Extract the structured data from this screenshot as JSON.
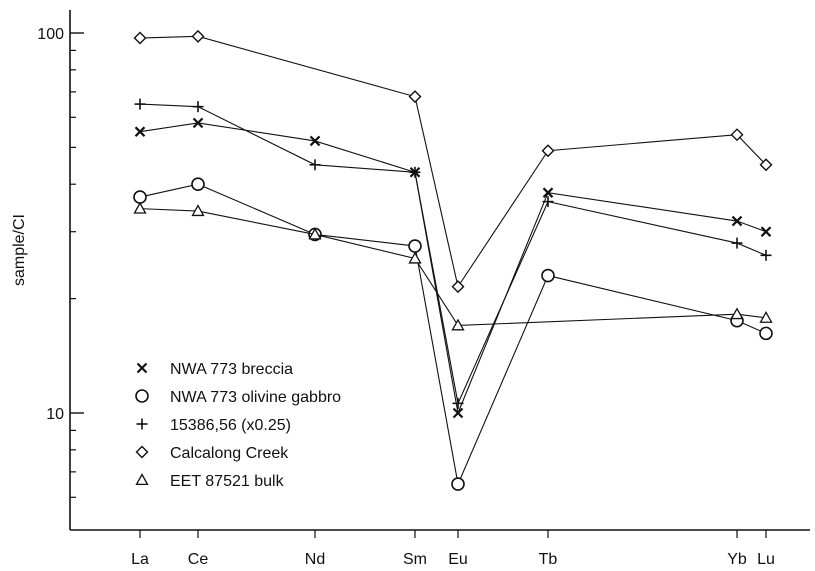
{
  "chart_data": {
    "type": "line",
    "title": "",
    "xlabel": "",
    "ylabel": "sample/CI",
    "y_scale": "log",
    "ylim": [
      6,
      100
    ],
    "y_ticks": [
      {
        "value": 100,
        "label": "100"
      },
      {
        "value": 10,
        "label": "10"
      }
    ],
    "x_ticks": [
      "La",
      "Ce",
      "Nd",
      "Sm",
      "Eu",
      "Tb",
      "Yb",
      "Lu"
    ],
    "grid": false,
    "legend_position": "bottom-left",
    "series": [
      {
        "name": "NWA 773 breccia",
        "marker": "x",
        "points": [
          {
            "x": "La",
            "y": 55
          },
          {
            "x": "Ce",
            "y": 58
          },
          {
            "x": "Nd",
            "y": 52
          },
          {
            "x": "Sm",
            "y": 43
          },
          {
            "x": "Eu",
            "y": 10.0
          },
          {
            "x": "Tb",
            "y": 38
          },
          {
            "x": "Yb",
            "y": 32
          },
          {
            "x": "Lu",
            "y": 30
          }
        ]
      },
      {
        "name": "NWA 773 olivine gabbro",
        "marker": "circle",
        "points": [
          {
            "x": "La",
            "y": 37
          },
          {
            "x": "Ce",
            "y": 40
          },
          {
            "x": "Nd",
            "y": 29.5
          },
          {
            "x": "Sm",
            "y": 27.5
          },
          {
            "x": "Eu",
            "y": 6.5
          },
          {
            "x": "Tb",
            "y": 23
          },
          {
            "x": "Yb",
            "y": 17.5
          },
          {
            "x": "Lu",
            "y": 16.2
          }
        ]
      },
      {
        "name": "15386,56 (x0.25)",
        "marker": "plus",
        "points": [
          {
            "x": "La",
            "y": 65
          },
          {
            "x": "Ce",
            "y": 64
          },
          {
            "x": "Nd",
            "y": 45
          },
          {
            "x": "Sm",
            "y": 43
          },
          {
            "x": "Eu",
            "y": 10.6
          },
          {
            "x": "Tb",
            "y": 36
          },
          {
            "x": "Yb",
            "y": 28
          },
          {
            "x": "Lu",
            "y": 26
          }
        ]
      },
      {
        "name": "Calcalong Creek",
        "marker": "diamond",
        "points": [
          {
            "x": "La",
            "y": 97
          },
          {
            "x": "Ce",
            "y": 98
          },
          {
            "x": "Sm",
            "y": 68
          },
          {
            "x": "Eu",
            "y": 21.5
          },
          {
            "x": "Tb",
            "y": 49
          },
          {
            "x": "Yb",
            "y": 54
          },
          {
            "x": "Lu",
            "y": 45
          }
        ]
      },
      {
        "name": "EET 87521 bulk",
        "marker": "triangle",
        "points": [
          {
            "x": "La",
            "y": 34.5
          },
          {
            "x": "Ce",
            "y": 34
          },
          {
            "x": "Nd",
            "y": 29.5
          },
          {
            "x": "Sm",
            "y": 25.5
          },
          {
            "x": "Eu",
            "y": 17
          },
          {
            "x": "Yb",
            "y": 18.2
          },
          {
            "x": "Lu",
            "y": 17.8
          }
        ]
      }
    ]
  }
}
